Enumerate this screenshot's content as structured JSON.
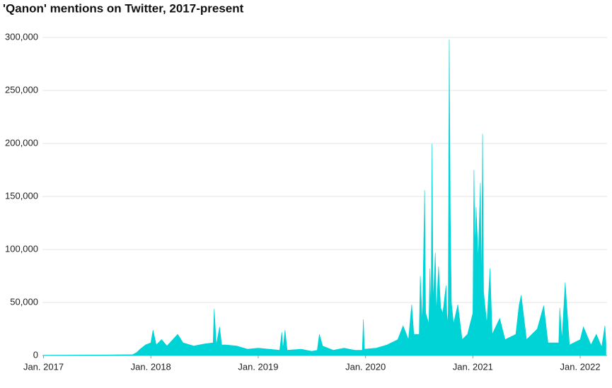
{
  "chart_data": {
    "type": "area",
    "title": "'Qanon' mentions on Twitter, 2017-present",
    "color": "#00d3d6",
    "grid": true,
    "x": [
      2017.0,
      2017.3,
      2017.5,
      2017.83,
      2017.87,
      2017.9,
      2017.95,
      2018.0,
      2018.02,
      2018.05,
      2018.1,
      2018.15,
      2018.25,
      2018.3,
      2018.4,
      2018.5,
      2018.58,
      2018.59,
      2018.61,
      2018.64,
      2018.66,
      2018.7,
      2018.8,
      2018.9,
      2019.0,
      2019.1,
      2019.2,
      2019.22,
      2019.23,
      2019.25,
      2019.27,
      2019.4,
      2019.5,
      2019.55,
      2019.57,
      2019.6,
      2019.7,
      2019.8,
      2019.9,
      2019.97,
      2019.98,
      2019.99,
      2020.1,
      2020.2,
      2020.3,
      2020.35,
      2020.4,
      2020.43,
      2020.45,
      2020.5,
      2020.51,
      2020.53,
      2020.55,
      2020.56,
      2020.59,
      2020.6,
      2020.61,
      2020.62,
      2020.63,
      2020.65,
      2020.66,
      2020.68,
      2020.7,
      2020.72,
      2020.75,
      2020.76,
      2020.77,
      2020.78,
      2020.79,
      2020.8,
      2020.82,
      2020.86,
      2020.9,
      2020.95,
      2021.0,
      2021.01,
      2021.02,
      2021.03,
      2021.05,
      2021.07,
      2021.08,
      2021.09,
      2021.1,
      2021.13,
      2021.16,
      2021.18,
      2021.25,
      2021.3,
      2021.4,
      2021.43,
      2021.45,
      2021.5,
      2021.6,
      2021.66,
      2021.7,
      2021.8,
      2021.81,
      2021.83,
      2021.86,
      2021.9,
      2022.0,
      2022.03,
      2022.1,
      2022.15,
      2022.2,
      2022.23,
      2022.24
    ],
    "values": [
      300,
      400,
      500,
      800,
      3000,
      6000,
      10000,
      12000,
      24000,
      10000,
      15000,
      9000,
      20000,
      12000,
      9000,
      11000,
      12000,
      44000,
      10000,
      27000,
      10000,
      10000,
      9000,
      6000,
      7000,
      6000,
      5000,
      22000,
      6000,
      24000,
      5000,
      6000,
      4000,
      5000,
      20000,
      9000,
      5000,
      7000,
      5000,
      5000,
      34000,
      6000,
      7000,
      10000,
      15000,
      28000,
      15000,
      48000,
      20000,
      20000,
      75000,
      30000,
      156000,
      40000,
      30000,
      82000,
      40000,
      200000,
      50000,
      97000,
      40000,
      84000,
      45000,
      40000,
      66000,
      30000,
      40000,
      298000,
      130000,
      50000,
      30000,
      48000,
      15000,
      20000,
      40000,
      175000,
      100000,
      140000,
      90000,
      163000,
      60000,
      209000,
      60000,
      30000,
      82000,
      20000,
      35000,
      15000,
      20000,
      47000,
      57000,
      15000,
      25000,
      47000,
      12000,
      12000,
      45000,
      15000,
      69000,
      10000,
      15000,
      27000,
      10000,
      20000,
      8000,
      28000,
      12000
    ],
    "xlim": [
      2016.99,
      2022.25
    ],
    "ylim": [
      0,
      300000
    ],
    "xticks": [
      {
        "value": 2017,
        "label": "Jan. 2017"
      },
      {
        "value": 2018,
        "label": "Jan. 2018"
      },
      {
        "value": 2019,
        "label": "Jan. 2019"
      },
      {
        "value": 2020,
        "label": "Jan. 2020"
      },
      {
        "value": 2021,
        "label": "Jan. 2021"
      },
      {
        "value": 2022,
        "label": "Jan. 2022"
      }
    ],
    "yticks": [
      0,
      {
        "value": 50000,
        "label": "50,000"
      },
      {
        "value": 100000,
        "label": "100,000"
      },
      {
        "value": 150000,
        "label": "150,000"
      },
      {
        "value": 200000,
        "label": "200,000"
      },
      {
        "value": 250000,
        "label": "250,000"
      },
      {
        "value": 300000,
        "label": "300,000"
      }
    ]
  }
}
